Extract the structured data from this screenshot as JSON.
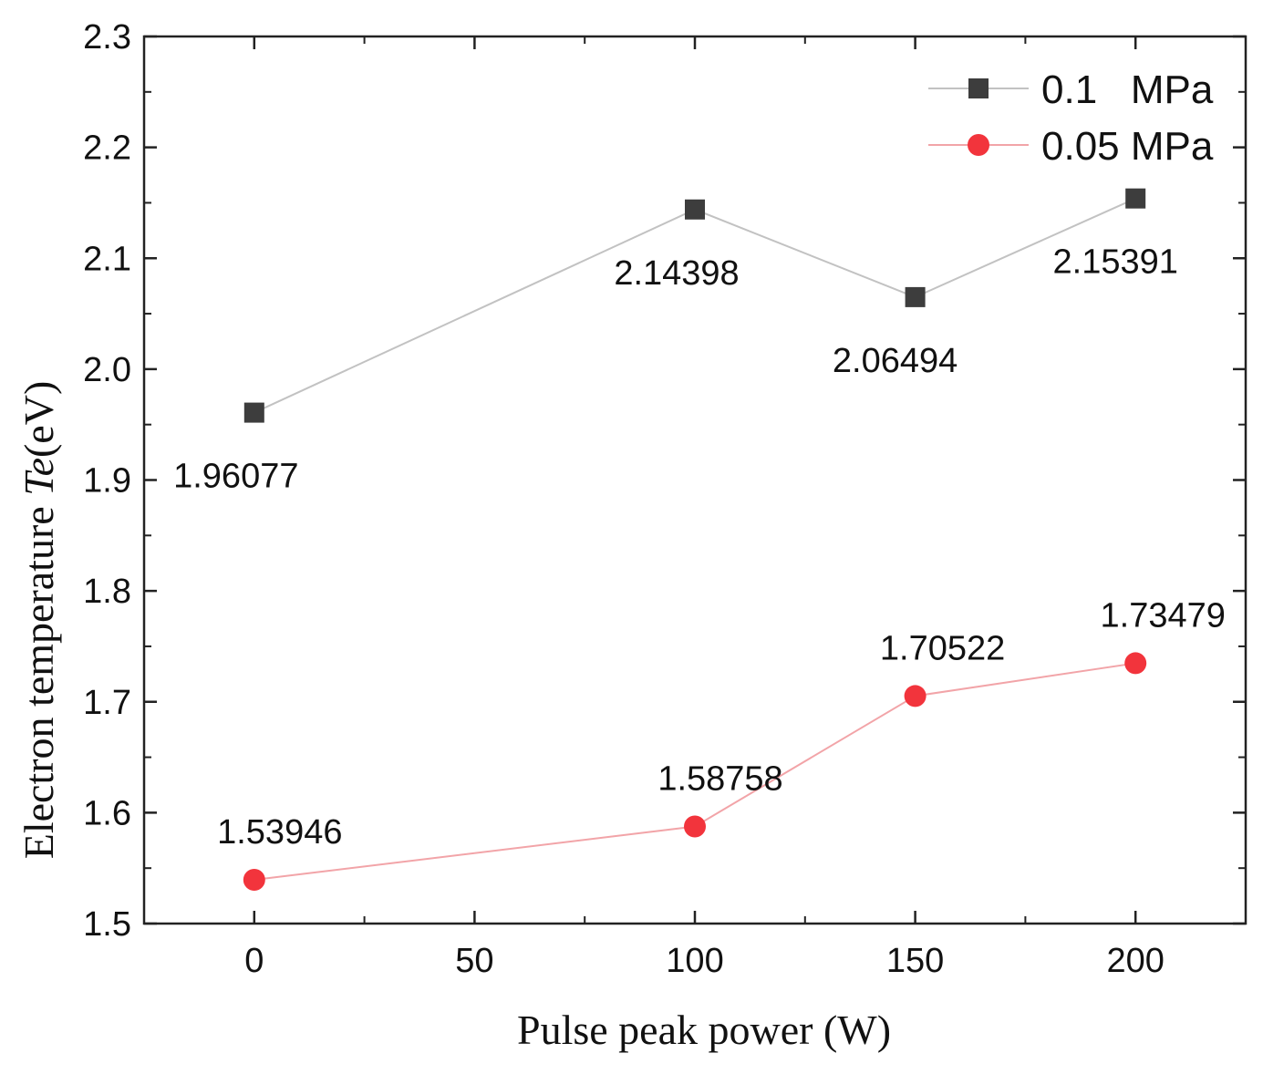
{
  "chart_data": {
    "type": "line",
    "title": "",
    "xlabel": "Pulse peak power (W)",
    "ylabel_prefix": "Electron temperature ",
    "ylabel_italic": "Te",
    "ylabel_suffix": "(eV)",
    "xlim": [
      -25,
      225
    ],
    "ylim": [
      1.5,
      2.3
    ],
    "xticks": [
      0,
      50,
      100,
      150,
      200
    ],
    "xtick_labels": [
      "0",
      "50",
      "100",
      "150",
      "200"
    ],
    "yticks": [
      1.5,
      1.6,
      1.7,
      1.8,
      1.9,
      2.0,
      2.1,
      2.2,
      2.3
    ],
    "ytick_labels": [
      "1.5",
      "1.6",
      "1.7",
      "1.8",
      "1.9",
      "2.0",
      "2.1",
      "2.2",
      "2.3"
    ],
    "grid": false,
    "legend_position": "top-right",
    "series": [
      {
        "name": "0.1   MPa",
        "marker": "square",
        "color": "#3d3d3d",
        "line_color": "#c2c2c2",
        "x": [
          0,
          100,
          150,
          200
        ],
        "values": [
          1.96077,
          2.14398,
          2.06494,
          2.15391
        ],
        "labels": [
          "1.96077",
          "2.14398",
          "2.06494",
          "2.15391"
        ]
      },
      {
        "name": "0.05 MPa",
        "marker": "circle",
        "color": "#f2343c",
        "line_color": "#f2a4a8",
        "x": [
          0,
          100,
          150,
          200
        ],
        "values": [
          1.53946,
          1.58758,
          1.70522,
          1.73479
        ],
        "labels": [
          "1.53946",
          "1.58758",
          "1.70522",
          "1.73479"
        ]
      }
    ]
  }
}
